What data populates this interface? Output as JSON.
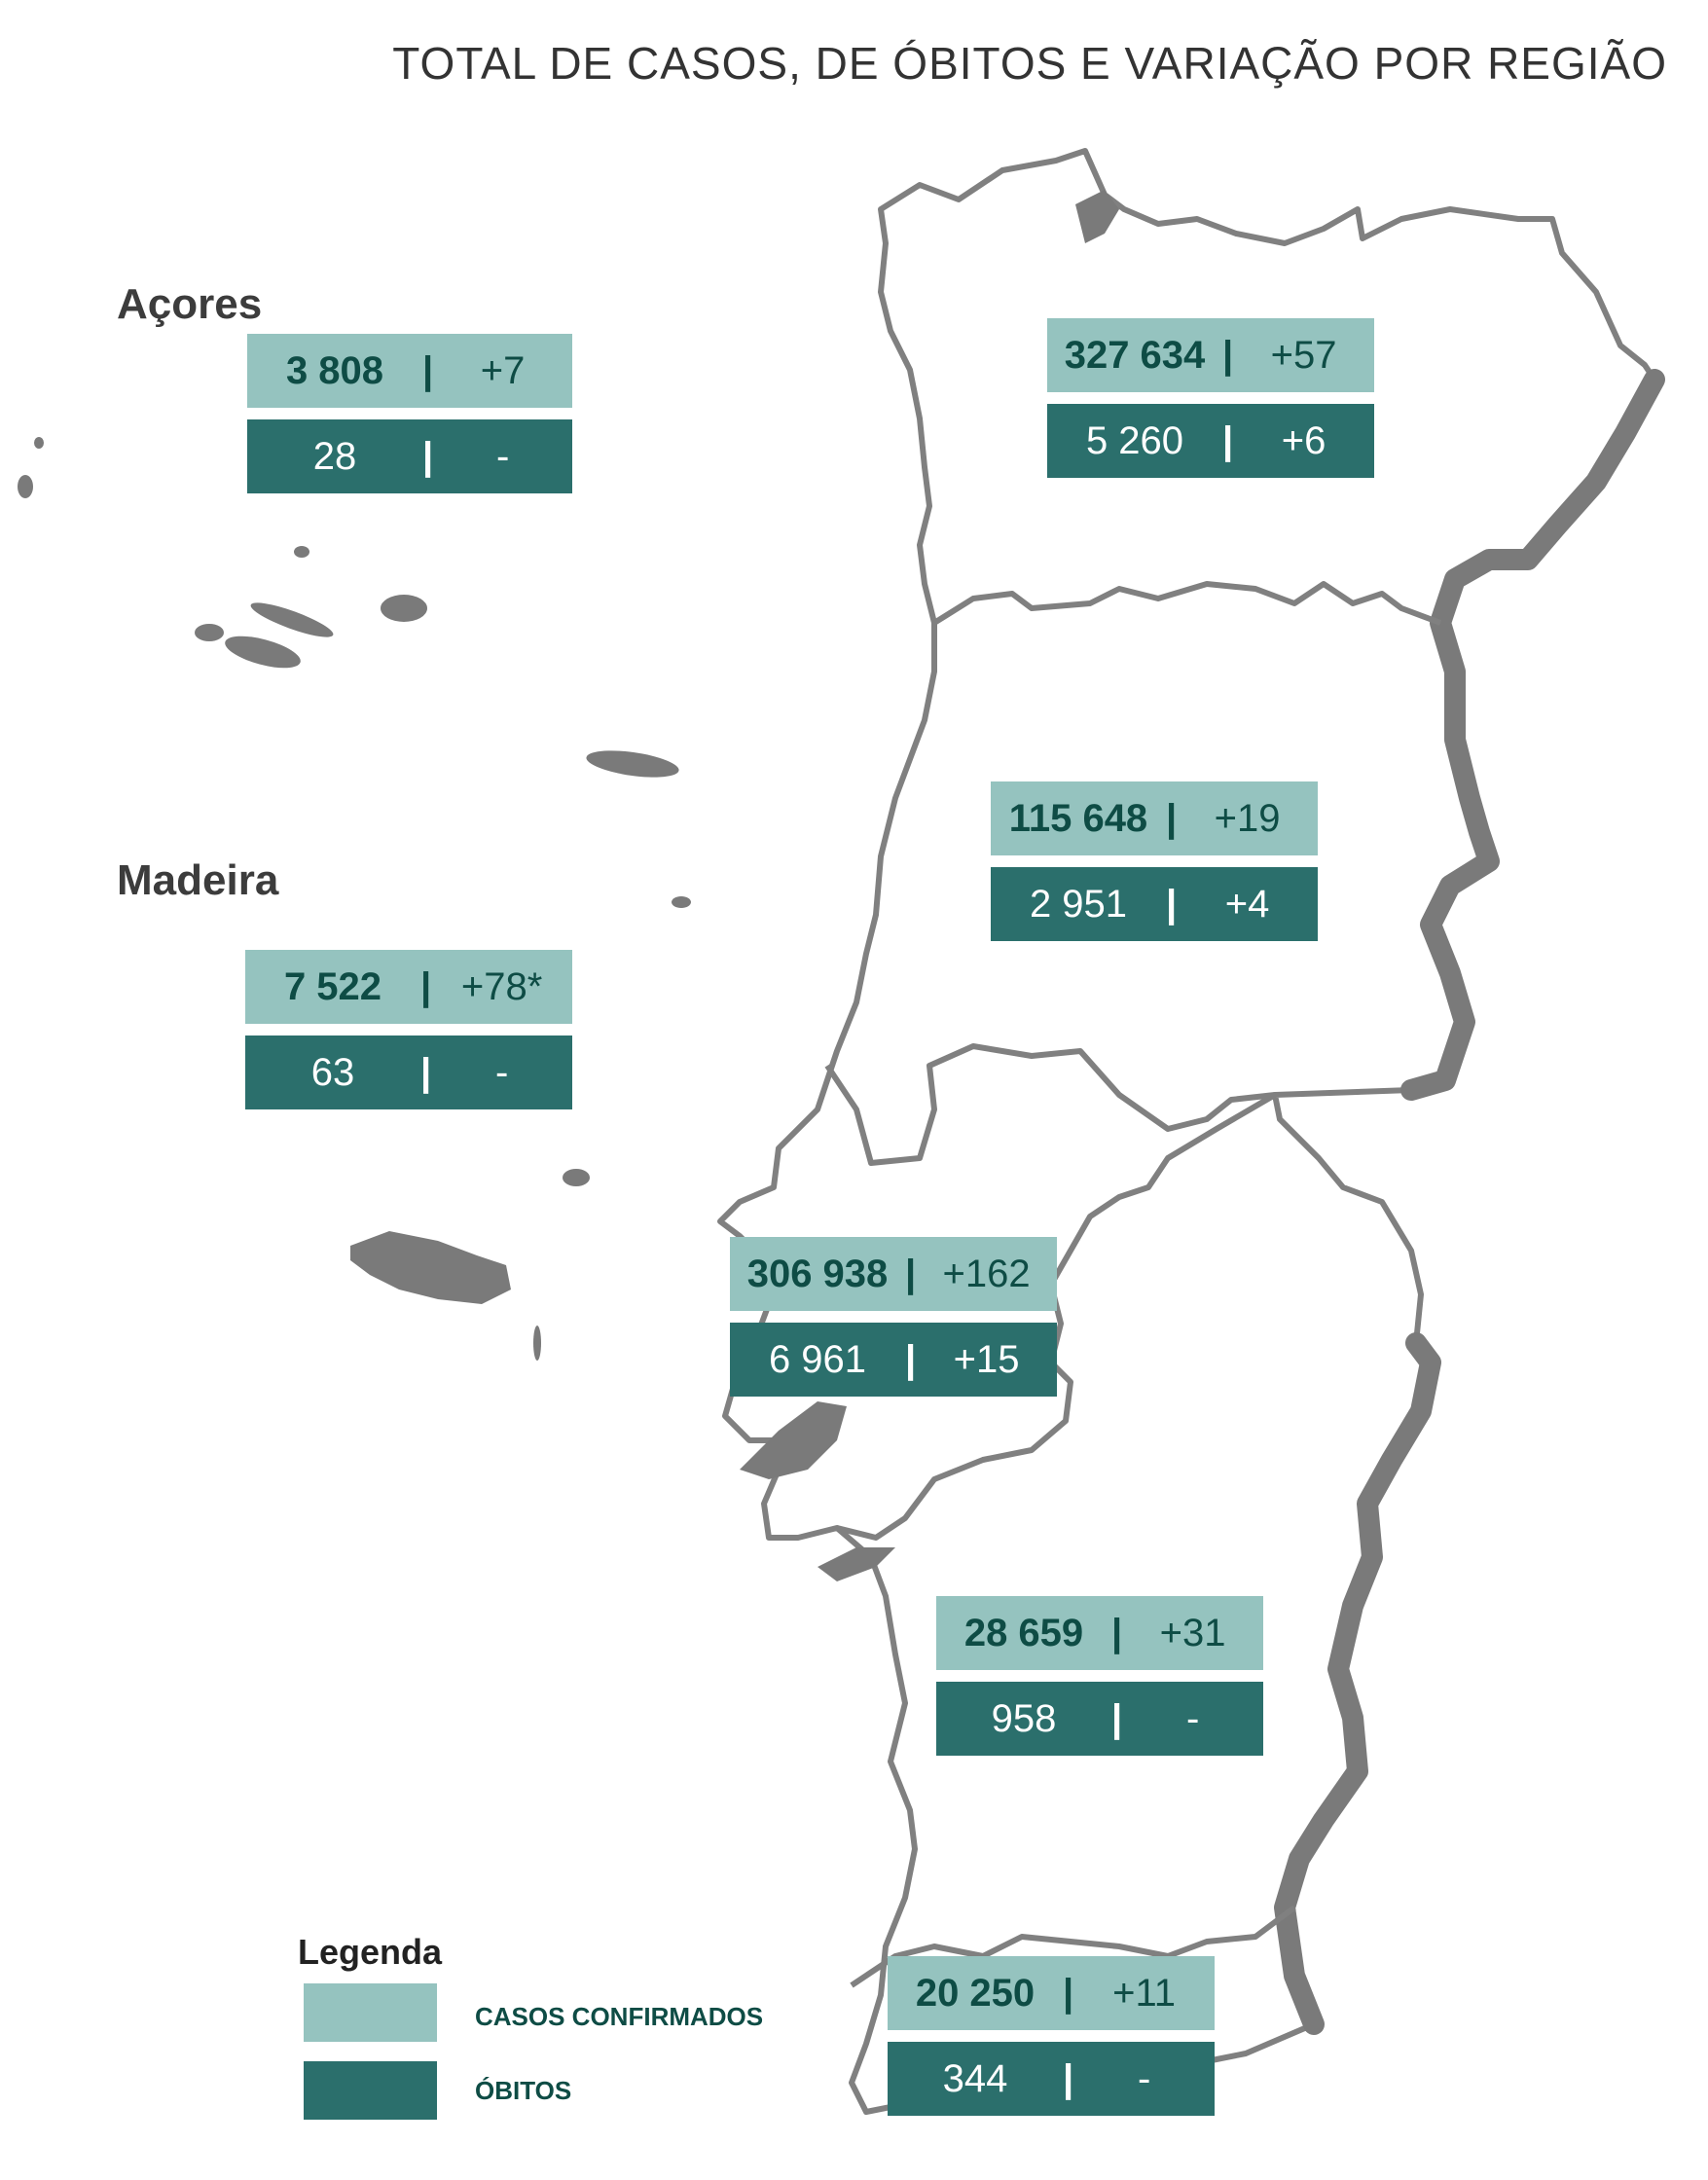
{
  "title": "TOTAL DE CASOS, DE ÓBITOS E VARIAÇÃO POR REGIÃO",
  "colors": {
    "cases": "#95c3bf",
    "deaths": "#2b6f6c",
    "map_border": "#808080"
  },
  "islands": {
    "azores_label": "Açores",
    "madeira_label": "Madeira"
  },
  "separator": "|",
  "regions": [
    {
      "id": "azores",
      "cases": "3 808",
      "cases_change": "+7",
      "deaths": "28",
      "deaths_change": "-"
    },
    {
      "id": "madeira",
      "cases": "7 522",
      "cases_change": "+78*",
      "deaths": "63",
      "deaths_change": "-"
    },
    {
      "id": "north",
      "cases": "327 634",
      "cases_change": "+57",
      "deaths": "5 260",
      "deaths_change": "+6"
    },
    {
      "id": "center",
      "cases": "115 648",
      "cases_change": "+19",
      "deaths": "2 951",
      "deaths_change": "+4"
    },
    {
      "id": "lisbon",
      "cases": "306 938",
      "cases_change": "+162",
      "deaths": "6 961",
      "deaths_change": "+15"
    },
    {
      "id": "alentejo",
      "cases": "28 659",
      "cases_change": "+31",
      "deaths": "958",
      "deaths_change": "-"
    },
    {
      "id": "algarve",
      "cases": "20 250",
      "cases_change": "+11",
      "deaths": "344",
      "deaths_change": "-"
    }
  ],
  "legend": {
    "title": "Legenda",
    "cases_label": "CASOS CONFIRMADOS",
    "deaths_label": "ÓBITOS"
  }
}
